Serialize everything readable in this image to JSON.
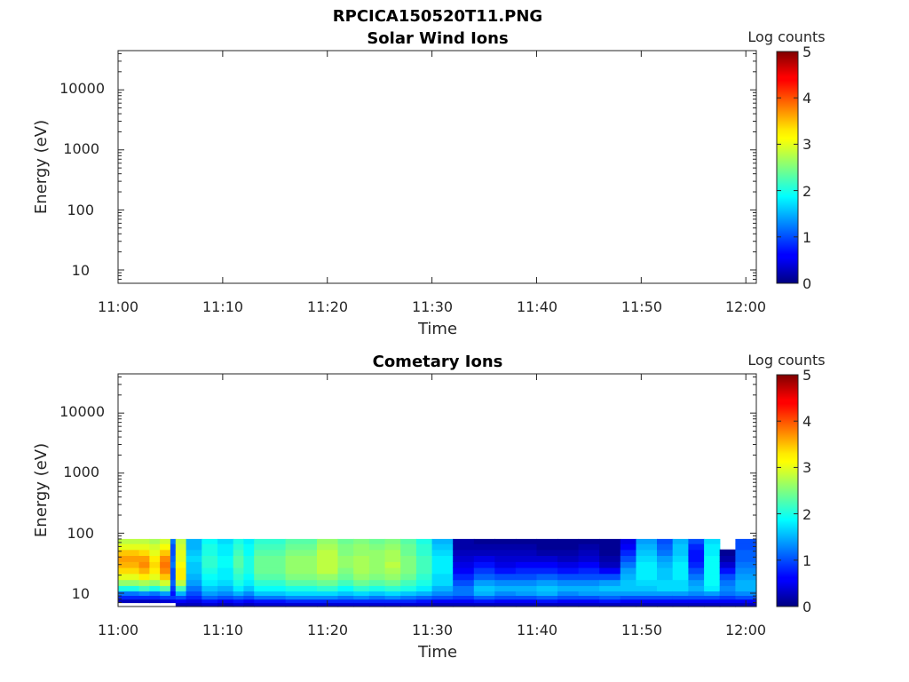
{
  "figure": {
    "title": "RPCICA150520T11.PNG"
  },
  "chart_data": [
    {
      "type": "heatmap",
      "title": "Solar Wind Ions",
      "xlabel": "Time",
      "ylabel": "Energy (eV)",
      "x_ticks": [
        "11:00",
        "11:10",
        "11:20",
        "11:30",
        "11:40",
        "11:50",
        "12:00"
      ],
      "y_ticks": [
        "10",
        "100",
        "1000",
        "10000"
      ],
      "xlim": [
        "11:00",
        "12:01"
      ],
      "ylim": [
        6,
        45000
      ],
      "y_scale": "log",
      "colorbar": {
        "label": "Log counts",
        "ticks": [
          "0",
          "1",
          "2",
          "3",
          "4",
          "5"
        ],
        "range": [
          0,
          5
        ],
        "colormap": "jet"
      },
      "columns": []
    },
    {
      "type": "heatmap",
      "title": "Cometary Ions",
      "xlabel": "Time",
      "ylabel": "Energy (eV)",
      "x_ticks": [
        "11:00",
        "11:10",
        "11:20",
        "11:30",
        "11:40",
        "11:50",
        "12:00"
      ],
      "y_ticks": [
        "10",
        "100",
        "1000",
        "10000"
      ],
      "xlim": [
        "11:00",
        "12:01"
      ],
      "ylim": [
        6,
        45000
      ],
      "y_scale": "log",
      "colorbar": {
        "label": "Log counts",
        "ticks": [
          "0",
          "1",
          "2",
          "3",
          "4",
          "5"
        ],
        "range": [
          0,
          5
        ],
        "colormap": "jet"
      },
      "energy_bins_eV": [
        6.5,
        7.5,
        8.5,
        10,
        12,
        15,
        19,
        24,
        30,
        38,
        48,
        60,
        75
      ],
      "columns": [
        {
          "start": "11:00",
          "end": "11:02",
          "log_counts": [
            -1,
            0.3,
            0.8,
            1.2,
            2.0,
            2.6,
            3.0,
            3.3,
            3.5,
            3.6,
            3.4,
            3.0,
            2.8
          ]
        },
        {
          "start": "11:02",
          "end": "11:03",
          "log_counts": [
            -1,
            0.3,
            0.8,
            1.3,
            2.2,
            2.7,
            3.2,
            3.5,
            3.7,
            3.6,
            3.3,
            3.0,
            2.8
          ]
        },
        {
          "start": "11:03",
          "end": "11:04",
          "log_counts": [
            -1,
            0.3,
            0.8,
            1.2,
            2.0,
            2.6,
            3.0,
            3.2,
            3.3,
            3.2,
            3.0,
            2.9,
            2.7
          ]
        },
        {
          "start": "11:04",
          "end": "11:05",
          "log_counts": [
            -1,
            0.4,
            0.9,
            1.4,
            2.3,
            2.9,
            3.4,
            3.7,
            3.8,
            3.7,
            3.4,
            3.1,
            2.9
          ]
        },
        {
          "start": "11:05",
          "end": "11:05.5",
          "log_counts": [
            -1,
            0.5,
            0.9,
            0.7,
            0.9,
            1.1,
            1.0,
            1.0,
            1.2,
            1.1,
            1.0,
            1.0,
            1.2
          ]
        },
        {
          "start": "11:05.5",
          "end": "11:06.5",
          "log_counts": [
            0.3,
            0.6,
            1.0,
            1.5,
            2.2,
            2.8,
            3.2,
            3.2,
            3.1,
            3.0,
            3.0,
            2.9,
            2.8
          ]
        },
        {
          "start": "11:06.5",
          "end": "11:08",
          "log_counts": [
            0.3,
            0.5,
            0.8,
            1.0,
            1.2,
            1.4,
            1.5,
            1.6,
            1.6,
            1.7,
            1.6,
            1.5,
            1.5
          ]
        },
        {
          "start": "11:08",
          "end": "11:09.5",
          "log_counts": [
            0.4,
            0.7,
            1.1,
            1.4,
            1.6,
            1.8,
            1.9,
            2.0,
            2.1,
            2.1,
            2.0,
            2.0,
            1.9
          ]
        },
        {
          "start": "11:09.5",
          "end": "11:11",
          "log_counts": [
            0.3,
            0.6,
            1.0,
            1.3,
            1.5,
            1.7,
            1.8,
            1.8,
            1.9,
            1.9,
            1.8,
            1.8,
            1.7
          ]
        },
        {
          "start": "11:11",
          "end": "11:12",
          "log_counts": [
            0.4,
            0.7,
            1.1,
            1.5,
            1.8,
            2.0,
            2.1,
            2.2,
            2.3,
            2.3,
            2.2,
            2.1,
            2.0
          ]
        },
        {
          "start": "11:12",
          "end": "11:13",
          "log_counts": [
            0.3,
            0.6,
            1.0,
            1.3,
            1.6,
            1.8,
            1.9,
            2.0,
            2.0,
            2.0,
            1.9,
            1.9,
            1.8
          ]
        },
        {
          "start": "11:13",
          "end": "11:16",
          "log_counts": [
            0.4,
            0.7,
            1.2,
            1.6,
            1.9,
            2.1,
            2.3,
            2.4,
            2.4,
            2.4,
            2.3,
            2.2,
            2.1
          ]
        },
        {
          "start": "11:16",
          "end": "11:19",
          "log_counts": [
            0.4,
            0.8,
            1.3,
            1.7,
            2.0,
            2.3,
            2.5,
            2.6,
            2.6,
            2.6,
            2.5,
            2.4,
            2.3
          ]
        },
        {
          "start": "11:19",
          "end": "11:21",
          "log_counts": [
            0.4,
            0.8,
            1.3,
            1.7,
            2.1,
            2.4,
            2.6,
            2.8,
            2.8,
            2.8,
            2.8,
            2.7,
            2.6
          ]
        },
        {
          "start": "11:21",
          "end": "11:22.5",
          "log_counts": [
            0.4,
            0.8,
            1.2,
            1.6,
            1.9,
            2.2,
            2.4,
            2.5,
            2.6,
            2.6,
            2.5,
            2.5,
            2.4
          ]
        },
        {
          "start": "11:22.5",
          "end": "11:24",
          "log_counts": [
            0.4,
            0.8,
            1.3,
            1.7,
            2.1,
            2.4,
            2.6,
            2.7,
            2.7,
            2.7,
            2.6,
            2.6,
            2.5
          ]
        },
        {
          "start": "11:24",
          "end": "11:25.5",
          "log_counts": [
            0.4,
            0.8,
            1.2,
            1.6,
            2.0,
            2.3,
            2.5,
            2.6,
            2.6,
            2.6,
            2.6,
            2.5,
            2.4
          ]
        },
        {
          "start": "11:25.5",
          "end": "11:27",
          "log_counts": [
            0.4,
            0.8,
            1.3,
            1.7,
            2.1,
            2.4,
            2.6,
            2.7,
            2.8,
            2.7,
            2.7,
            2.6,
            2.5
          ]
        },
        {
          "start": "11:27",
          "end": "11:28.5",
          "log_counts": [
            0.4,
            0.8,
            1.2,
            1.6,
            2.0,
            2.2,
            2.4,
            2.5,
            2.5,
            2.5,
            2.4,
            2.4,
            2.3
          ]
        },
        {
          "start": "11:28.5",
          "end": "11:30",
          "log_counts": [
            0.4,
            0.7,
            1.1,
            1.5,
            1.8,
            2.0,
            2.1,
            2.2,
            2.2,
            2.2,
            2.1,
            2.1,
            2.0
          ]
        },
        {
          "start": "11:30",
          "end": "11:32",
          "log_counts": [
            0.3,
            0.6,
            1.0,
            1.3,
            1.5,
            1.7,
            1.7,
            1.8,
            1.8,
            1.8,
            1.7,
            1.6,
            1.5
          ]
        },
        {
          "start": "11:32",
          "end": "11:34",
          "log_counts": [
            0.3,
            0.6,
            0.9,
            1.2,
            1.2,
            1.0,
            0.8,
            0.6,
            0.5,
            0.4,
            0.3,
            0.2,
            0.2
          ]
        },
        {
          "start": "11:34",
          "end": "11:36",
          "log_counts": [
            0.3,
            0.7,
            1.1,
            1.5,
            1.6,
            1.4,
            1.1,
            0.9,
            0.7,
            0.5,
            0.3,
            0.2,
            0.1
          ]
        },
        {
          "start": "11:36",
          "end": "11:38",
          "log_counts": [
            0.3,
            0.6,
            1.0,
            1.3,
            1.5,
            1.3,
            1.0,
            0.7,
            0.5,
            0.4,
            0.3,
            0.2,
            0.1
          ]
        },
        {
          "start": "11:38",
          "end": "11:40",
          "log_counts": [
            0.3,
            0.6,
            1.0,
            1.4,
            1.5,
            1.3,
            1.0,
            0.8,
            0.6,
            0.4,
            0.3,
            0.2,
            0.1
          ]
        },
        {
          "start": "11:40",
          "end": "11:42",
          "log_counts": [
            0.3,
            0.7,
            1.1,
            1.5,
            1.6,
            1.4,
            1.1,
            0.8,
            0.6,
            0.4,
            0.2,
            0.1,
            0.1
          ]
        },
        {
          "start": "11:42",
          "end": "11:44",
          "log_counts": [
            0.3,
            0.6,
            1.0,
            1.3,
            1.5,
            1.3,
            1.0,
            0.7,
            0.5,
            0.3,
            0.2,
            0.1,
            0.1
          ]
        },
        {
          "start": "11:44",
          "end": "11:46",
          "log_counts": [
            0.3,
            0.6,
            1.0,
            1.4,
            1.5,
            1.3,
            1.0,
            0.8,
            0.6,
            0.4,
            0.3,
            0.2,
            0.1
          ]
        },
        {
          "start": "11:46",
          "end": "11:48",
          "log_counts": [
            0.3,
            0.7,
            1.1,
            1.4,
            1.6,
            1.4,
            1.0,
            0.6,
            0.3,
            0.2,
            0.1,
            0.1,
            0.1
          ]
        },
        {
          "start": "11:48",
          "end": "11:49.5",
          "log_counts": [
            0.3,
            0.6,
            1.0,
            1.4,
            1.6,
            1.6,
            1.5,
            1.4,
            1.2,
            1.0,
            0.8,
            0.6,
            0.5
          ]
        },
        {
          "start": "11:49.5",
          "end": "11:51.5",
          "log_counts": [
            0.3,
            0.6,
            1.0,
            1.4,
            1.6,
            1.7,
            1.8,
            1.8,
            1.8,
            1.7,
            1.6,
            1.5,
            1.4
          ]
        },
        {
          "start": "11:51.5",
          "end": "11:53",
          "log_counts": [
            0.3,
            0.6,
            1.0,
            1.4,
            1.7,
            1.7,
            1.6,
            1.6,
            1.5,
            1.4,
            1.2,
            1.1,
            1.0
          ]
        },
        {
          "start": "11:53",
          "end": "11:54.5",
          "log_counts": [
            0.3,
            0.6,
            1.0,
            1.4,
            1.7,
            1.7,
            1.8,
            1.8,
            1.8,
            1.7,
            1.6,
            1.6,
            1.5
          ]
        },
        {
          "start": "11:54.5",
          "end": "11:56",
          "log_counts": [
            0.3,
            0.6,
            1.0,
            1.3,
            1.5,
            1.4,
            1.2,
            1.0,
            0.8,
            0.7,
            0.7,
            0.8,
            1.0
          ]
        },
        {
          "start": "11:56",
          "end": "11:57.5",
          "log_counts": [
            0.3,
            0.6,
            1.0,
            1.4,
            1.8,
            1.9,
            1.9,
            1.9,
            1.9,
            1.9,
            1.8,
            1.8,
            1.7
          ]
        },
        {
          "start": "11:57.5",
          "end": "11:59",
          "log_counts": [
            0.3,
            0.6,
            0.9,
            1.2,
            1.3,
            1.2,
            1.0,
            0.7,
            0.4,
            0.2,
            0.1,
            -1,
            -1
          ]
        },
        {
          "start": "11:59",
          "end": "12:01",
          "log_counts": [
            0.3,
            0.6,
            1.0,
            1.3,
            1.5,
            1.5,
            1.4,
            1.3,
            1.2,
            1.1,
            1.1,
            1.0,
            1.0
          ]
        }
      ]
    }
  ]
}
